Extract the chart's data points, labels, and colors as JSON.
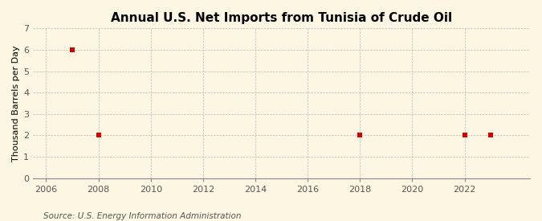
{
  "title": "Annual U.S. Net Imports from Tunisia of Crude Oil",
  "ylabel": "Thousand Barrels per Day",
  "source_text": "Source: U.S. Energy Information Administration",
  "background_color": "#fdf6e3",
  "plot_bg_color": "#fdf6e3",
  "data_years": [
    2007,
    2008,
    2018,
    2022,
    2023
  ],
  "data_values": [
    6,
    2,
    2,
    2,
    2
  ],
  "xlim": [
    2005.5,
    2024.5
  ],
  "ylim": [
    0,
    7
  ],
  "yticks": [
    0,
    1,
    2,
    3,
    4,
    5,
    6,
    7
  ],
  "xticks": [
    2006,
    2008,
    2010,
    2012,
    2014,
    2016,
    2018,
    2020,
    2022
  ],
  "marker_color": "#cc0000",
  "marker_size": 18,
  "grid_color": "#bbbbbb",
  "title_fontsize": 11,
  "axis_label_fontsize": 8,
  "tick_fontsize": 8,
  "source_fontsize": 7.5
}
